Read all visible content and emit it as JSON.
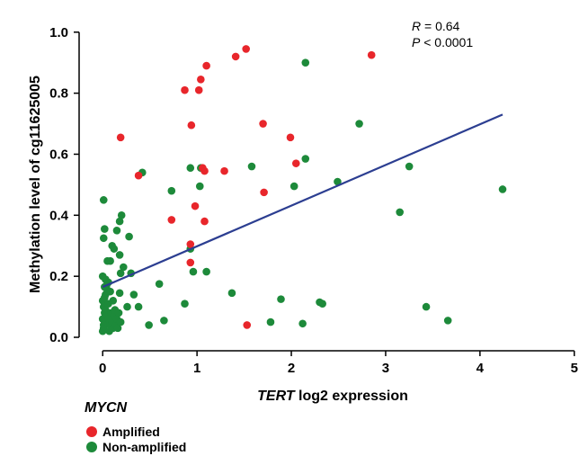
{
  "chart_data": {
    "type": "scatter",
    "xlabel_italic": "TERT",
    "xlabel_rest": " log2 expression",
    "ylabel": "Methylation level of cg11625005",
    "xlim": [
      -0.25,
      5.05
    ],
    "ylim": [
      -0.05,
      1.07
    ],
    "xticks": [
      "0",
      "1",
      "2",
      "3",
      "4",
      "5"
    ],
    "yticks": [
      "0.0",
      "0.2",
      "0.4",
      "0.6",
      "0.8",
      "1.0"
    ],
    "grid": false,
    "stats": {
      "r_symbol": "R",
      "r_text": " = 0.64",
      "p_symbol": "P",
      "p_text": " < 0.0001"
    },
    "legend": {
      "title": "MYCN",
      "placement": "bottom-left"
    },
    "series": [
      {
        "name": "Amplified",
        "color": "#e8262b",
        "points": [
          [
            0.19,
            0.655
          ],
          [
            0.38,
            0.53
          ],
          [
            0.73,
            0.385
          ],
          [
            0.87,
            0.81
          ],
          [
            0.93,
            0.245
          ],
          [
            0.93,
            0.305
          ],
          [
            0.94,
            0.695
          ],
          [
            0.98,
            0.43
          ],
          [
            1.02,
            0.81
          ],
          [
            1.04,
            0.845
          ],
          [
            1.06,
            0.555
          ],
          [
            1.08,
            0.38
          ],
          [
            1.1,
            0.89
          ],
          [
            1.08,
            0.545
          ],
          [
            1.29,
            0.545
          ],
          [
            1.41,
            0.92
          ],
          [
            1.52,
            0.945
          ],
          [
            1.53,
            0.04
          ],
          [
            1.7,
            0.7
          ],
          [
            1.71,
            0.475
          ],
          [
            1.99,
            0.655
          ],
          [
            2.05,
            0.57
          ],
          [
            2.85,
            0.925
          ]
        ]
      },
      {
        "name": "Non-amplified",
        "color": "#1d8a3a",
        "points": [
          [
            0.0,
            0.2
          ],
          [
            0.01,
            0.45
          ],
          [
            0.02,
            0.355
          ],
          [
            0.01,
            0.325
          ],
          [
            0.03,
            0.19
          ],
          [
            0.04,
            0.16
          ],
          [
            0.05,
            0.25
          ],
          [
            0.08,
            0.25
          ],
          [
            0.06,
            0.18
          ],
          [
            0.1,
            0.3
          ],
          [
            0.12,
            0.29
          ],
          [
            0.15,
            0.35
          ],
          [
            0.18,
            0.38
          ],
          [
            0.2,
            0.4
          ],
          [
            0.18,
            0.27
          ],
          [
            0.28,
            0.33
          ],
          [
            0.22,
            0.23
          ],
          [
            0.19,
            0.21
          ],
          [
            0.3,
            0.21
          ],
          [
            0.18,
            0.145
          ],
          [
            0.26,
            0.1
          ],
          [
            0.33,
            0.14
          ],
          [
            0.38,
            0.1
          ],
          [
            0.42,
            0.54
          ],
          [
            0.49,
            0.04
          ],
          [
            0.6,
            0.175
          ],
          [
            0.65,
            0.055
          ],
          [
            0.73,
            0.48
          ],
          [
            0.87,
            0.11
          ],
          [
            0.93,
            0.555
          ],
          [
            0.93,
            0.29
          ],
          [
            0.96,
            0.215
          ],
          [
            1.04,
            0.555
          ],
          [
            1.03,
            0.495
          ],
          [
            1.1,
            0.215
          ],
          [
            1.37,
            0.145
          ],
          [
            1.58,
            0.56
          ],
          [
            1.78,
            0.05
          ],
          [
            1.89,
            0.125
          ],
          [
            2.03,
            0.495
          ],
          [
            2.12,
            0.045
          ],
          [
            2.15,
            0.9
          ],
          [
            2.15,
            0.585
          ],
          [
            2.3,
            0.115
          ],
          [
            2.33,
            0.11
          ],
          [
            2.49,
            0.51
          ],
          [
            2.72,
            0.7
          ],
          [
            3.15,
            0.41
          ],
          [
            3.25,
            0.56
          ],
          [
            3.43,
            0.1
          ],
          [
            3.66,
            0.055
          ],
          [
            4.24,
            0.485
          ],
          [
            0.0,
            0.02
          ],
          [
            0.01,
            0.04
          ],
          [
            0.0,
            0.06
          ],
          [
            0.02,
            0.08
          ],
          [
            0.01,
            0.1
          ],
          [
            0.0,
            0.12
          ],
          [
            0.03,
            0.14
          ],
          [
            0.01,
            0.03
          ],
          [
            0.04,
            0.05
          ],
          [
            0.05,
            0.07
          ],
          [
            0.03,
            0.09
          ],
          [
            0.06,
            0.11
          ],
          [
            0.02,
            0.13
          ],
          [
            0.07,
            0.02
          ],
          [
            0.08,
            0.04
          ],
          [
            0.06,
            0.06
          ],
          [
            0.09,
            0.08
          ],
          [
            0.1,
            0.05
          ],
          [
            0.11,
            0.03
          ],
          [
            0.12,
            0.07
          ],
          [
            0.13,
            0.09
          ],
          [
            0.14,
            0.04
          ],
          [
            0.15,
            0.06
          ],
          [
            0.16,
            0.03
          ],
          [
            0.17,
            0.08
          ],
          [
            0.19,
            0.05
          ],
          [
            0.04,
            0.17
          ],
          [
            0.08,
            0.15
          ],
          [
            0.11,
            0.12
          ],
          [
            0.02,
            0.165
          ]
        ]
      }
    ],
    "trendline": {
      "color": "#2c3e91",
      "x": [
        0.0,
        4.24
      ],
      "y": [
        0.165,
        0.73
      ]
    }
  }
}
